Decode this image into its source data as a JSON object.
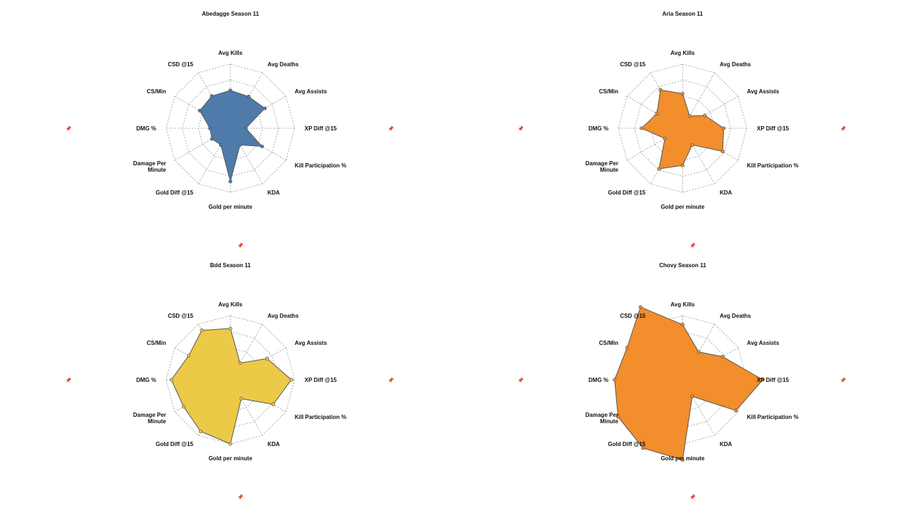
{
  "axes": [
    "Avg Kills",
    "Avg Deaths",
    "Avg Assists",
    "XP Diff @15",
    "Kill Participation %",
    "KDA",
    "Gold per minute",
    "Gold Diff @15",
    "Damage Per Minute",
    "DMG %",
    "CS/Min",
    "CSD @15"
  ],
  "pin_icon": "pin-icon",
  "chart_data": [
    {
      "type": "radar",
      "title": "Abedagge Season 11",
      "axes": [
        "Avg Kills",
        "Avg Deaths",
        "Avg Assists",
        "XP Diff @15",
        "Kill Participation %",
        "KDA",
        "Gold per minute",
        "Gold Diff @15",
        "Damage Per Minute",
        "DMG %",
        "CS/Min",
        "CSD @15"
      ],
      "values": [
        0.59,
        0.57,
        0.62,
        0.24,
        0.57,
        0.3,
        0.83,
        0.3,
        0.33,
        0.32,
        0.55,
        0.58
      ],
      "range": [
        0,
        1
      ],
      "rings": 4,
      "color": "#4f7bab"
    },
    {
      "type": "radar",
      "title": "Aria Season 11",
      "axes": [
        "Avg Kills",
        "Avg Deaths",
        "Avg Assists",
        "XP Diff @15",
        "Kill Participation %",
        "KDA",
        "Gold per minute",
        "Gold Diff @15",
        "Damage Per Minute",
        "DMG %",
        "CS/Min",
        "CSD @15"
      ],
      "values": [
        0.54,
        0.22,
        0.4,
        0.64,
        0.72,
        0.3,
        0.58,
        0.73,
        0.32,
        0.64,
        0.46,
        0.69
      ],
      "range": [
        0,
        1
      ],
      "rings": 4,
      "color": "#f28e2b"
    },
    {
      "type": "radar",
      "title": "Bdd Season 11",
      "axes": [
        "Avg Kills",
        "Avg Deaths",
        "Avg Assists",
        "XP Diff @15",
        "Kill Participation %",
        "KDA",
        "Gold per minute",
        "Gold Diff @15",
        "Damage Per Minute",
        "DMG %",
        "CS/Min",
        "CSD @15"
      ],
      "values": [
        0.8,
        0.3,
        0.66,
        0.95,
        0.77,
        0.34,
        1.0,
        0.93,
        0.84,
        0.92,
        0.75,
        0.89
      ],
      "range": [
        0,
        1
      ],
      "rings": 4,
      "color": "#edc948"
    },
    {
      "type": "radar",
      "title": "Chovy Season 11",
      "axes": [
        "Avg Kills",
        "Avg Deaths",
        "Avg Assists",
        "XP Diff @15",
        "Kill Participation %",
        "KDA",
        "Gold per minute",
        "Gold Diff @15",
        "Damage Per Minute",
        "DMG %",
        "CS/Min",
        "CSD @15"
      ],
      "values": [
        0.86,
        0.5,
        0.72,
        1.25,
        0.96,
        0.3,
        1.25,
        1.23,
        1.16,
        1.06,
        1.0,
        1.31
      ],
      "range": [
        0,
        1
      ],
      "rings": 4,
      "color": "#f28e2b"
    }
  ]
}
